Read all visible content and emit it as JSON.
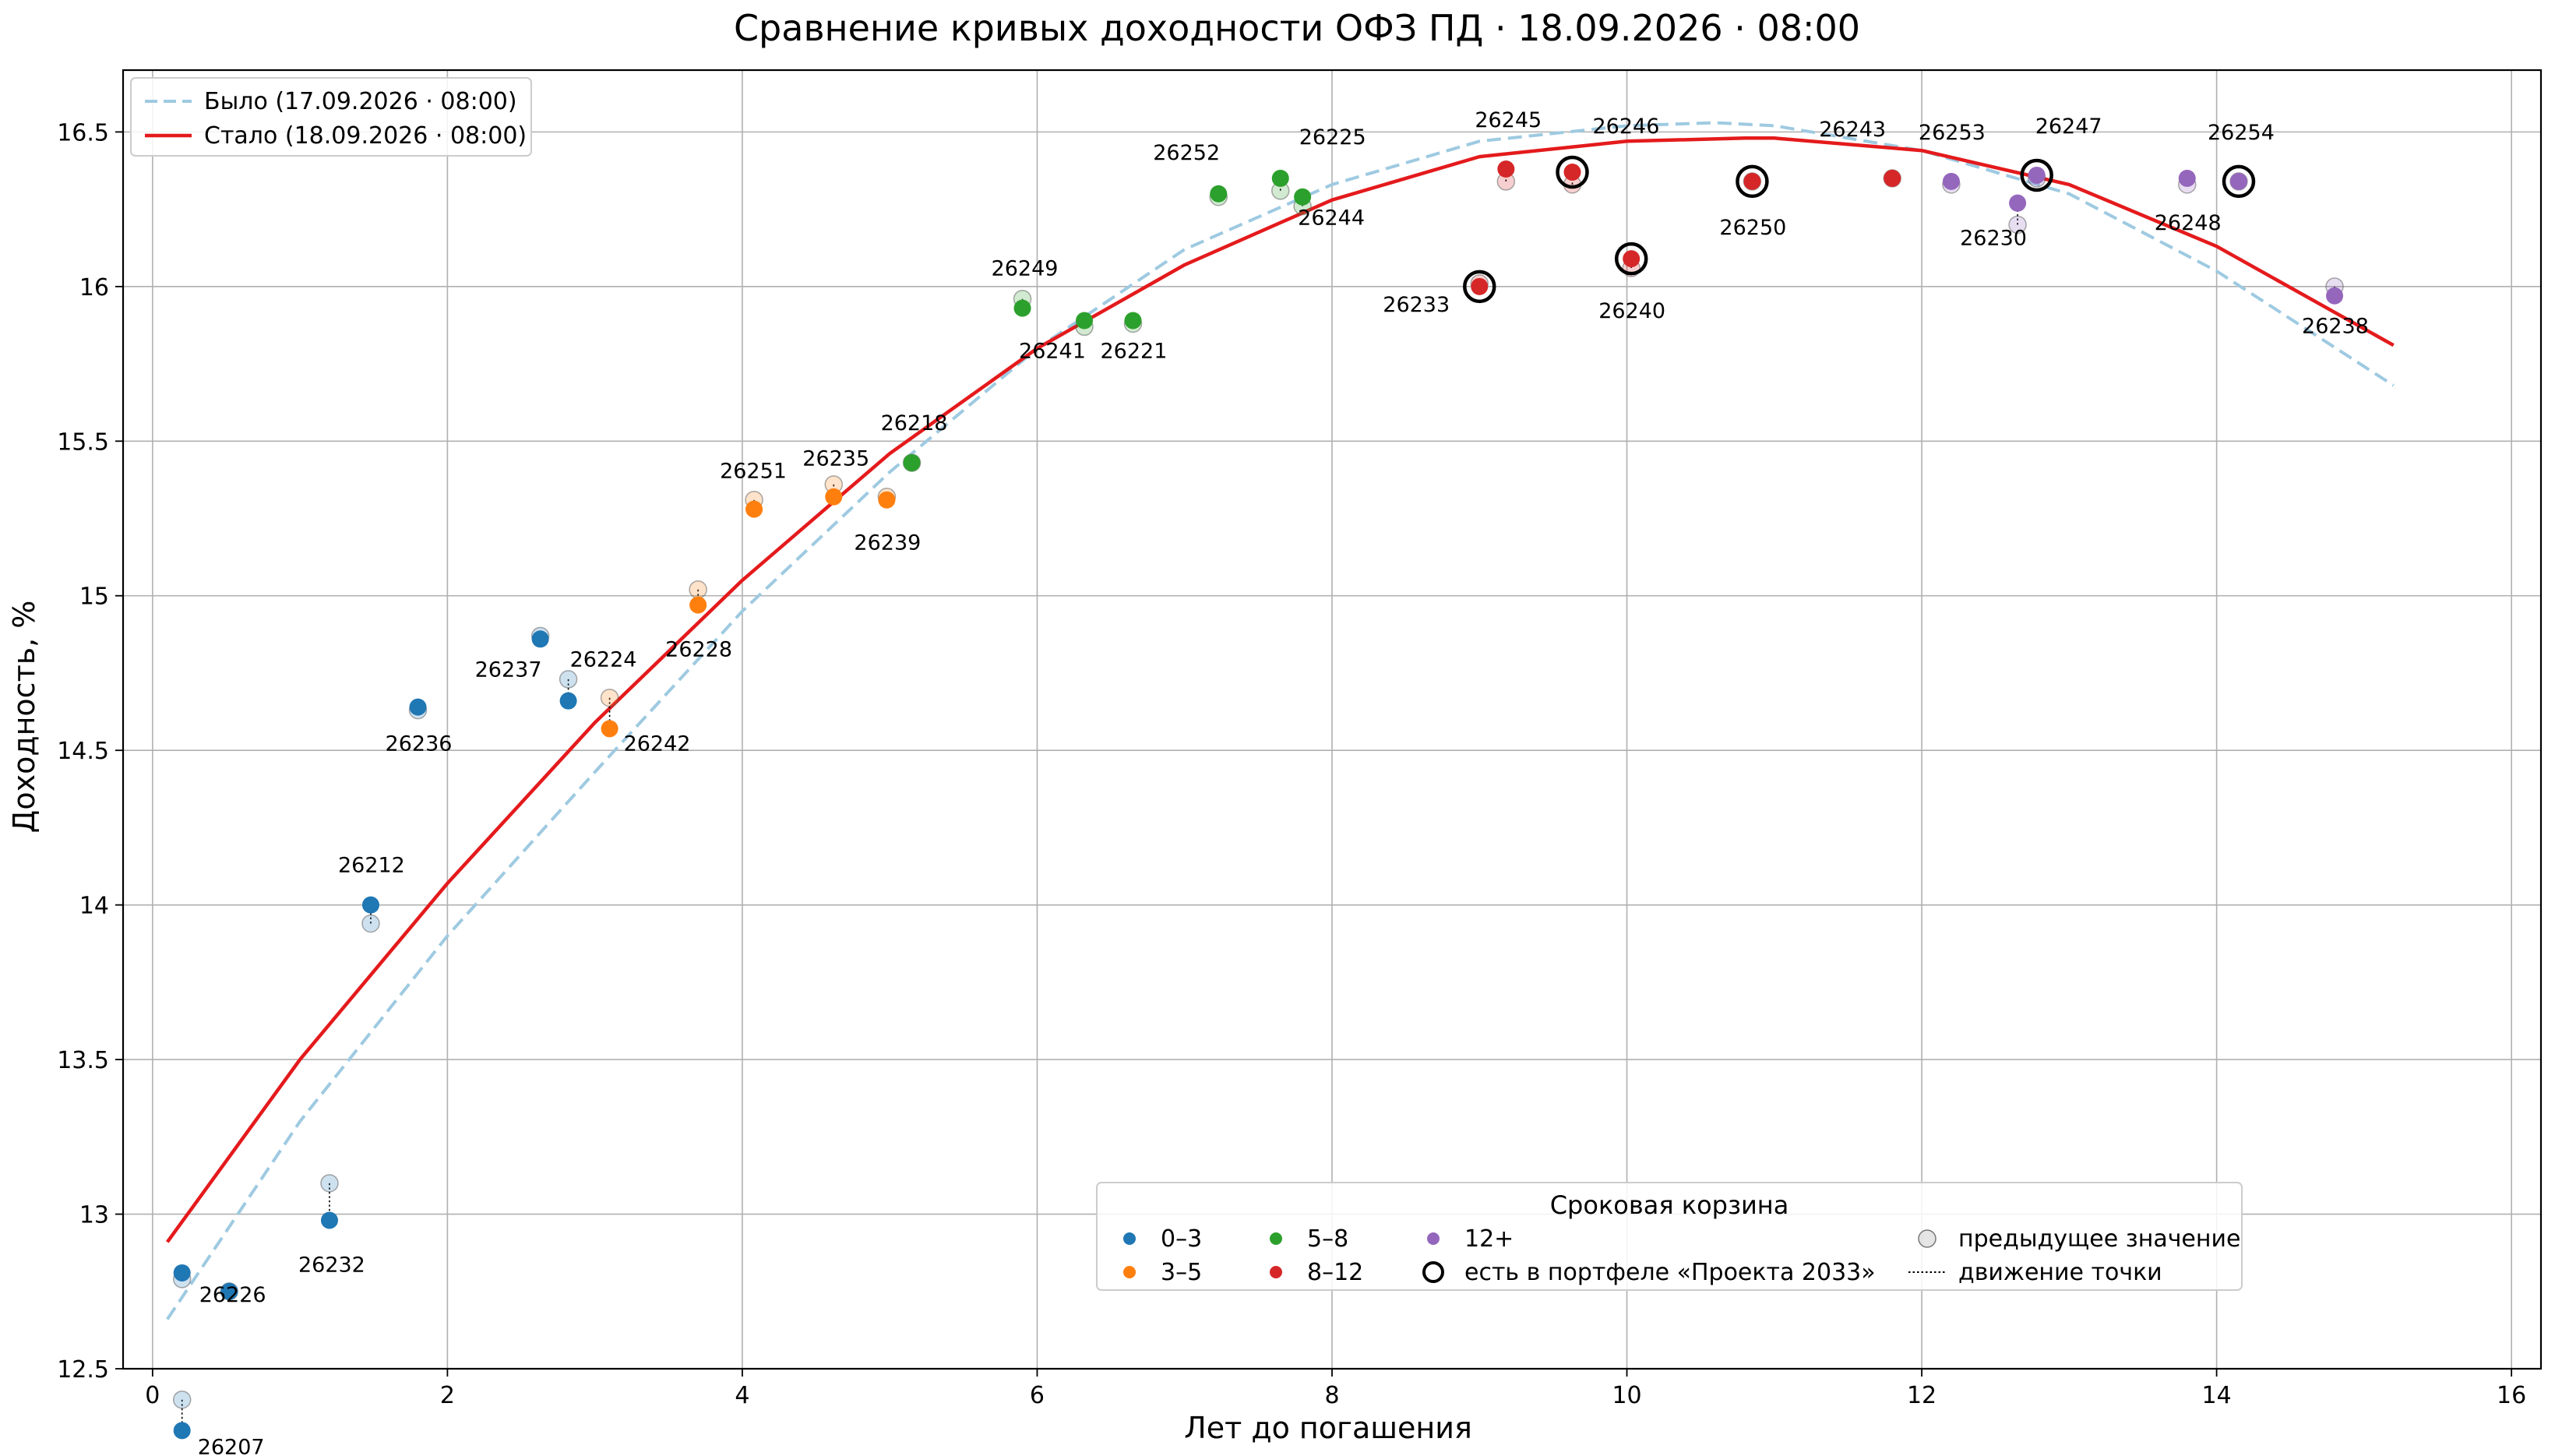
{
  "chart_data": {
    "type": "scatter",
    "title": "Сравнение кривых доходности ОФЗ ПД · 18.09.2026 · 08:00",
    "xlabel": "Лет до погашения",
    "ylabel": "Доходность, %",
    "xlim": [
      -0.2,
      16.2
    ],
    "ylim": [
      12.5,
      16.7
    ],
    "xticks": [
      0,
      2,
      4,
      6,
      8,
      10,
      12,
      14,
      16
    ],
    "yticks": [
      12.5,
      13.0,
      13.5,
      14.0,
      14.5,
      15.0,
      15.5,
      16.0,
      16.5
    ],
    "grid": true,
    "curves": [
      {
        "name": "Было (17.09.2026 · 08:00)",
        "style": "dashed",
        "color": "#9ecae1",
        "x": [
          0.1,
          1,
          2,
          3,
          4,
          5,
          6,
          7,
          8,
          9,
          10,
          10.6,
          11,
          12,
          13,
          14,
          15.2
        ],
        "y": [
          12.66,
          13.3,
          13.9,
          14.43,
          14.95,
          15.4,
          15.8,
          16.12,
          16.33,
          16.47,
          16.52,
          16.53,
          16.52,
          16.44,
          16.3,
          16.05,
          15.68
        ]
      },
      {
        "name": "Стало (18.09.2026 · 08:00)",
        "style": "solid",
        "color": "#e41a1c",
        "x": [
          0.1,
          1,
          2,
          3,
          4,
          5,
          6,
          7,
          8,
          9,
          10,
          10.8,
          11,
          12,
          13,
          14,
          15.2
        ],
        "y": [
          12.91,
          13.5,
          14.07,
          14.59,
          15.05,
          15.46,
          15.8,
          16.07,
          16.28,
          16.42,
          16.47,
          16.48,
          16.48,
          16.44,
          16.33,
          16.13,
          15.81
        ]
      }
    ],
    "buckets": [
      {
        "name": "0–3",
        "color": "#1f77b4"
      },
      {
        "name": "3–5",
        "color": "#ff7f0e"
      },
      {
        "name": "5–8",
        "color": "#2ca02c"
      },
      {
        "name": "8–12",
        "color": "#d62728"
      },
      {
        "name": "12+",
        "color": "#9467bd"
      }
    ],
    "bonds": [
      {
        "id": "26207",
        "x": 0.2,
        "y": 12.3,
        "prev": 12.4,
        "bucket": 0,
        "portfolio": false
      },
      {
        "id": "26226",
        "x": 0.2,
        "y": 12.81,
        "prev": 12.79,
        "bucket": 0,
        "portfolio": false
      },
      {
        "id": "",
        "x": 0.52,
        "y": 12.75,
        "prev": 12.75,
        "bucket": 0,
        "portfolio": false
      },
      {
        "id": "26232",
        "x": 1.2,
        "y": 12.98,
        "prev": 13.1,
        "bucket": 0,
        "portfolio": false
      },
      {
        "id": "26212",
        "x": 1.48,
        "y": 14.0,
        "prev": 13.94,
        "bucket": 0,
        "portfolio": false
      },
      {
        "id": "26236",
        "x": 1.8,
        "y": 14.64,
        "prev": 14.63,
        "bucket": 0,
        "portfolio": false
      },
      {
        "id": "26237",
        "x": 2.63,
        "y": 14.86,
        "prev": 14.87,
        "bucket": 0,
        "portfolio": false
      },
      {
        "id": "26224",
        "x": 2.82,
        "y": 14.66,
        "prev": 14.73,
        "bucket": 0,
        "portfolio": false
      },
      {
        "id": "26242",
        "x": 3.1,
        "y": 14.57,
        "prev": 14.67,
        "bucket": 1,
        "portfolio": false
      },
      {
        "id": "26228",
        "x": 3.7,
        "y": 14.97,
        "prev": 15.02,
        "bucket": 1,
        "portfolio": false
      },
      {
        "id": "26251",
        "x": 4.08,
        "y": 15.28,
        "prev": 15.31,
        "bucket": 1,
        "portfolio": false
      },
      {
        "id": "26235",
        "x": 4.62,
        "y": 15.32,
        "prev": 15.36,
        "bucket": 1,
        "portfolio": false
      },
      {
        "id": "26239",
        "x": 4.98,
        "y": 15.31,
        "prev": 15.32,
        "bucket": 1,
        "portfolio": false
      },
      {
        "id": "26218",
        "x": 5.15,
        "y": 15.43,
        "prev": 15.43,
        "bucket": 2,
        "portfolio": false
      },
      {
        "id": "26249",
        "x": 5.9,
        "y": 15.93,
        "prev": 15.96,
        "bucket": 2,
        "portfolio": false
      },
      {
        "id": "26241",
        "x": 6.32,
        "y": 15.89,
        "prev": 15.87,
        "bucket": 2,
        "portfolio": false
      },
      {
        "id": "26221",
        "x": 6.65,
        "y": 15.89,
        "prev": 15.88,
        "bucket": 2,
        "portfolio": false
      },
      {
        "id": "26252",
        "x": 7.23,
        "y": 16.3,
        "prev": 16.29,
        "bucket": 2,
        "portfolio": false
      },
      {
        "id": "26225",
        "x": 7.65,
        "y": 16.35,
        "prev": 16.31,
        "bucket": 2,
        "portfolio": false
      },
      {
        "id": "26244",
        "x": 7.8,
        "y": 16.29,
        "prev": 16.26,
        "bucket": 2,
        "portfolio": false
      },
      {
        "id": "26233",
        "x": 9.0,
        "y": 16.0,
        "prev": 16.01,
        "bucket": 3,
        "portfolio": true
      },
      {
        "id": "26245",
        "x": 9.18,
        "y": 16.38,
        "prev": 16.34,
        "bucket": 3,
        "portfolio": false
      },
      {
        "id": "26246",
        "x": 9.63,
        "y": 16.37,
        "prev": 16.33,
        "bucket": 3,
        "portfolio": true
      },
      {
        "id": "26240",
        "x": 10.03,
        "y": 16.09,
        "prev": 16.06,
        "bucket": 3,
        "portfolio": true
      },
      {
        "id": "26250",
        "x": 10.85,
        "y": 16.34,
        "prev": 16.34,
        "bucket": 3,
        "portfolio": true
      },
      {
        "id": "26243",
        "x": 11.8,
        "y": 16.35,
        "prev": 16.35,
        "bucket": 3,
        "portfolio": false
      },
      {
        "id": "26253",
        "x": 12.2,
        "y": 16.34,
        "prev": 16.33,
        "bucket": 4,
        "portfolio": false
      },
      {
        "id": "26230",
        "x": 12.65,
        "y": 16.27,
        "prev": 16.2,
        "bucket": 4,
        "portfolio": false
      },
      {
        "id": "26247",
        "x": 12.78,
        "y": 16.36,
        "prev": 16.35,
        "bucket": 4,
        "portfolio": true
      },
      {
        "id": "26248",
        "x": 13.8,
        "y": 16.35,
        "prev": 16.33,
        "bucket": 4,
        "portfolio": false
      },
      {
        "id": "26254",
        "x": 14.15,
        "y": 16.34,
        "prev": 16.34,
        "bucket": 4,
        "portfolio": true
      },
      {
        "id": "26238",
        "x": 14.8,
        "y": 15.97,
        "prev": 16.0,
        "bucket": 4,
        "portfolio": false
      }
    ],
    "legend_curves": {
      "location": "top-left"
    },
    "legend_buckets": {
      "location": "bottom-right",
      "title": "Сроковая корзина",
      "portfolio_label": "есть в портфеле «Проекта 2033»",
      "prev_label": "предыдущее значение",
      "move_label": "движение точки"
    }
  }
}
